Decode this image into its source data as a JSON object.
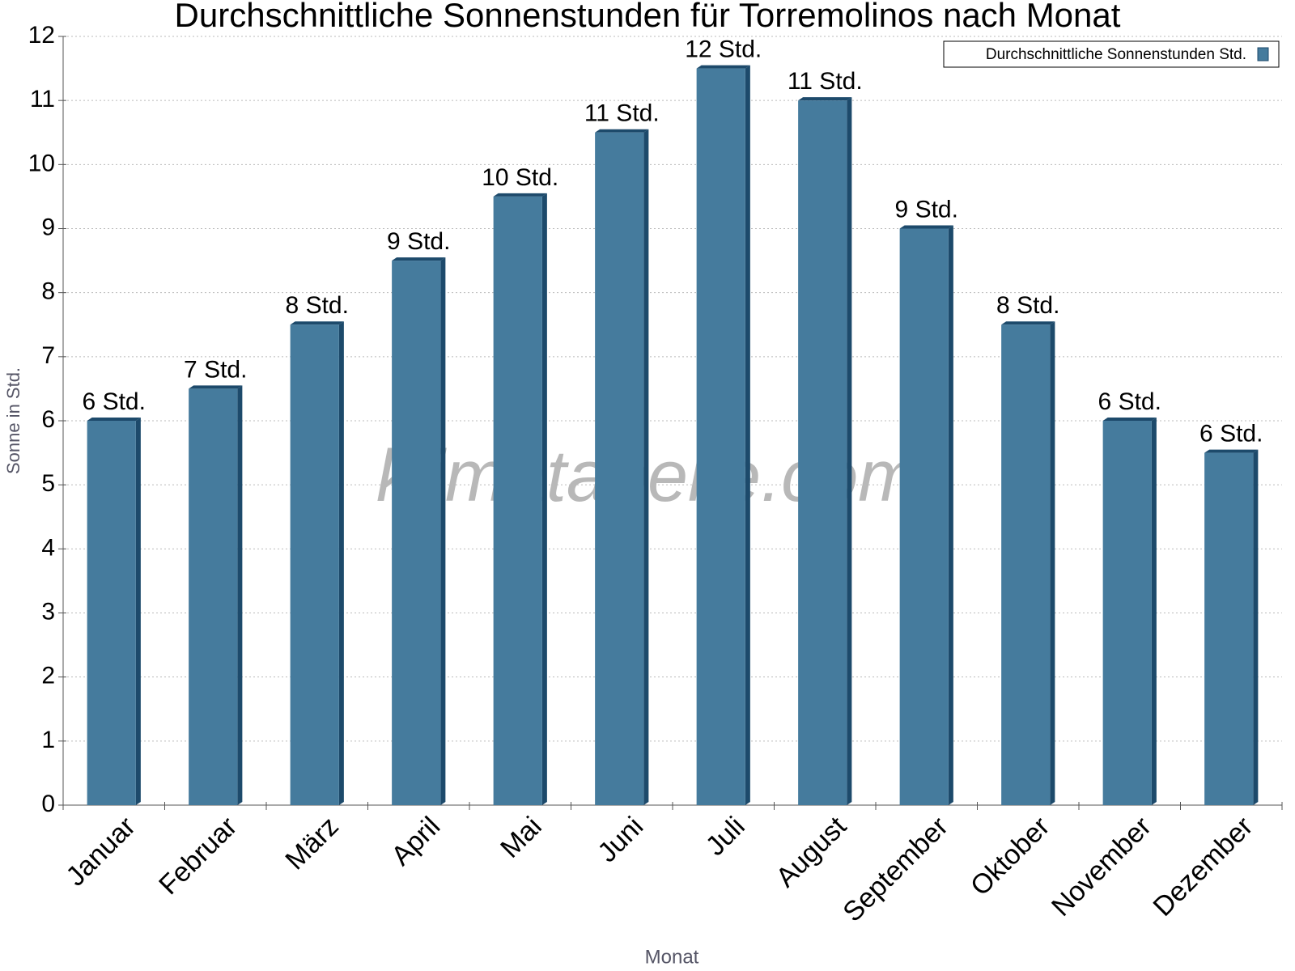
{
  "chart_data": {
    "type": "bar",
    "title": "Durchschnittliche Sonnenstunden für Torremolinos nach Monat",
    "x_label": "Monat",
    "y_label": "Sonne in Std.",
    "watermark": "klimatabelle.com",
    "categories": [
      "Januar",
      "Februar",
      "März",
      "April",
      "Mai",
      "Juni",
      "Juli",
      "August",
      "September",
      "Oktober",
      "November",
      "Dezember"
    ],
    "series": [
      {
        "name": "Durchschnittliche Sonnenstunden Std.",
        "color": "#457b9d",
        "values": [
          6,
          6.5,
          7.5,
          8.5,
          9.5,
          10.5,
          11.5,
          11,
          9,
          7.5,
          6,
          5.5
        ],
        "value_labels": [
          "6 Std.",
          "7 Std.",
          "8 Std.",
          "9 Std.",
          "10 Std.",
          "11 Std.",
          "12 Std.",
          "11 Std.",
          "9 Std.",
          "8 Std.",
          "6 Std.",
          "6 Std."
        ]
      }
    ],
    "ylim": [
      0,
      12
    ],
    "yticks": [
      0,
      1,
      2,
      3,
      4,
      5,
      6,
      7,
      8,
      9,
      10,
      11,
      12
    ],
    "grid": true,
    "legend": "top-right"
  }
}
